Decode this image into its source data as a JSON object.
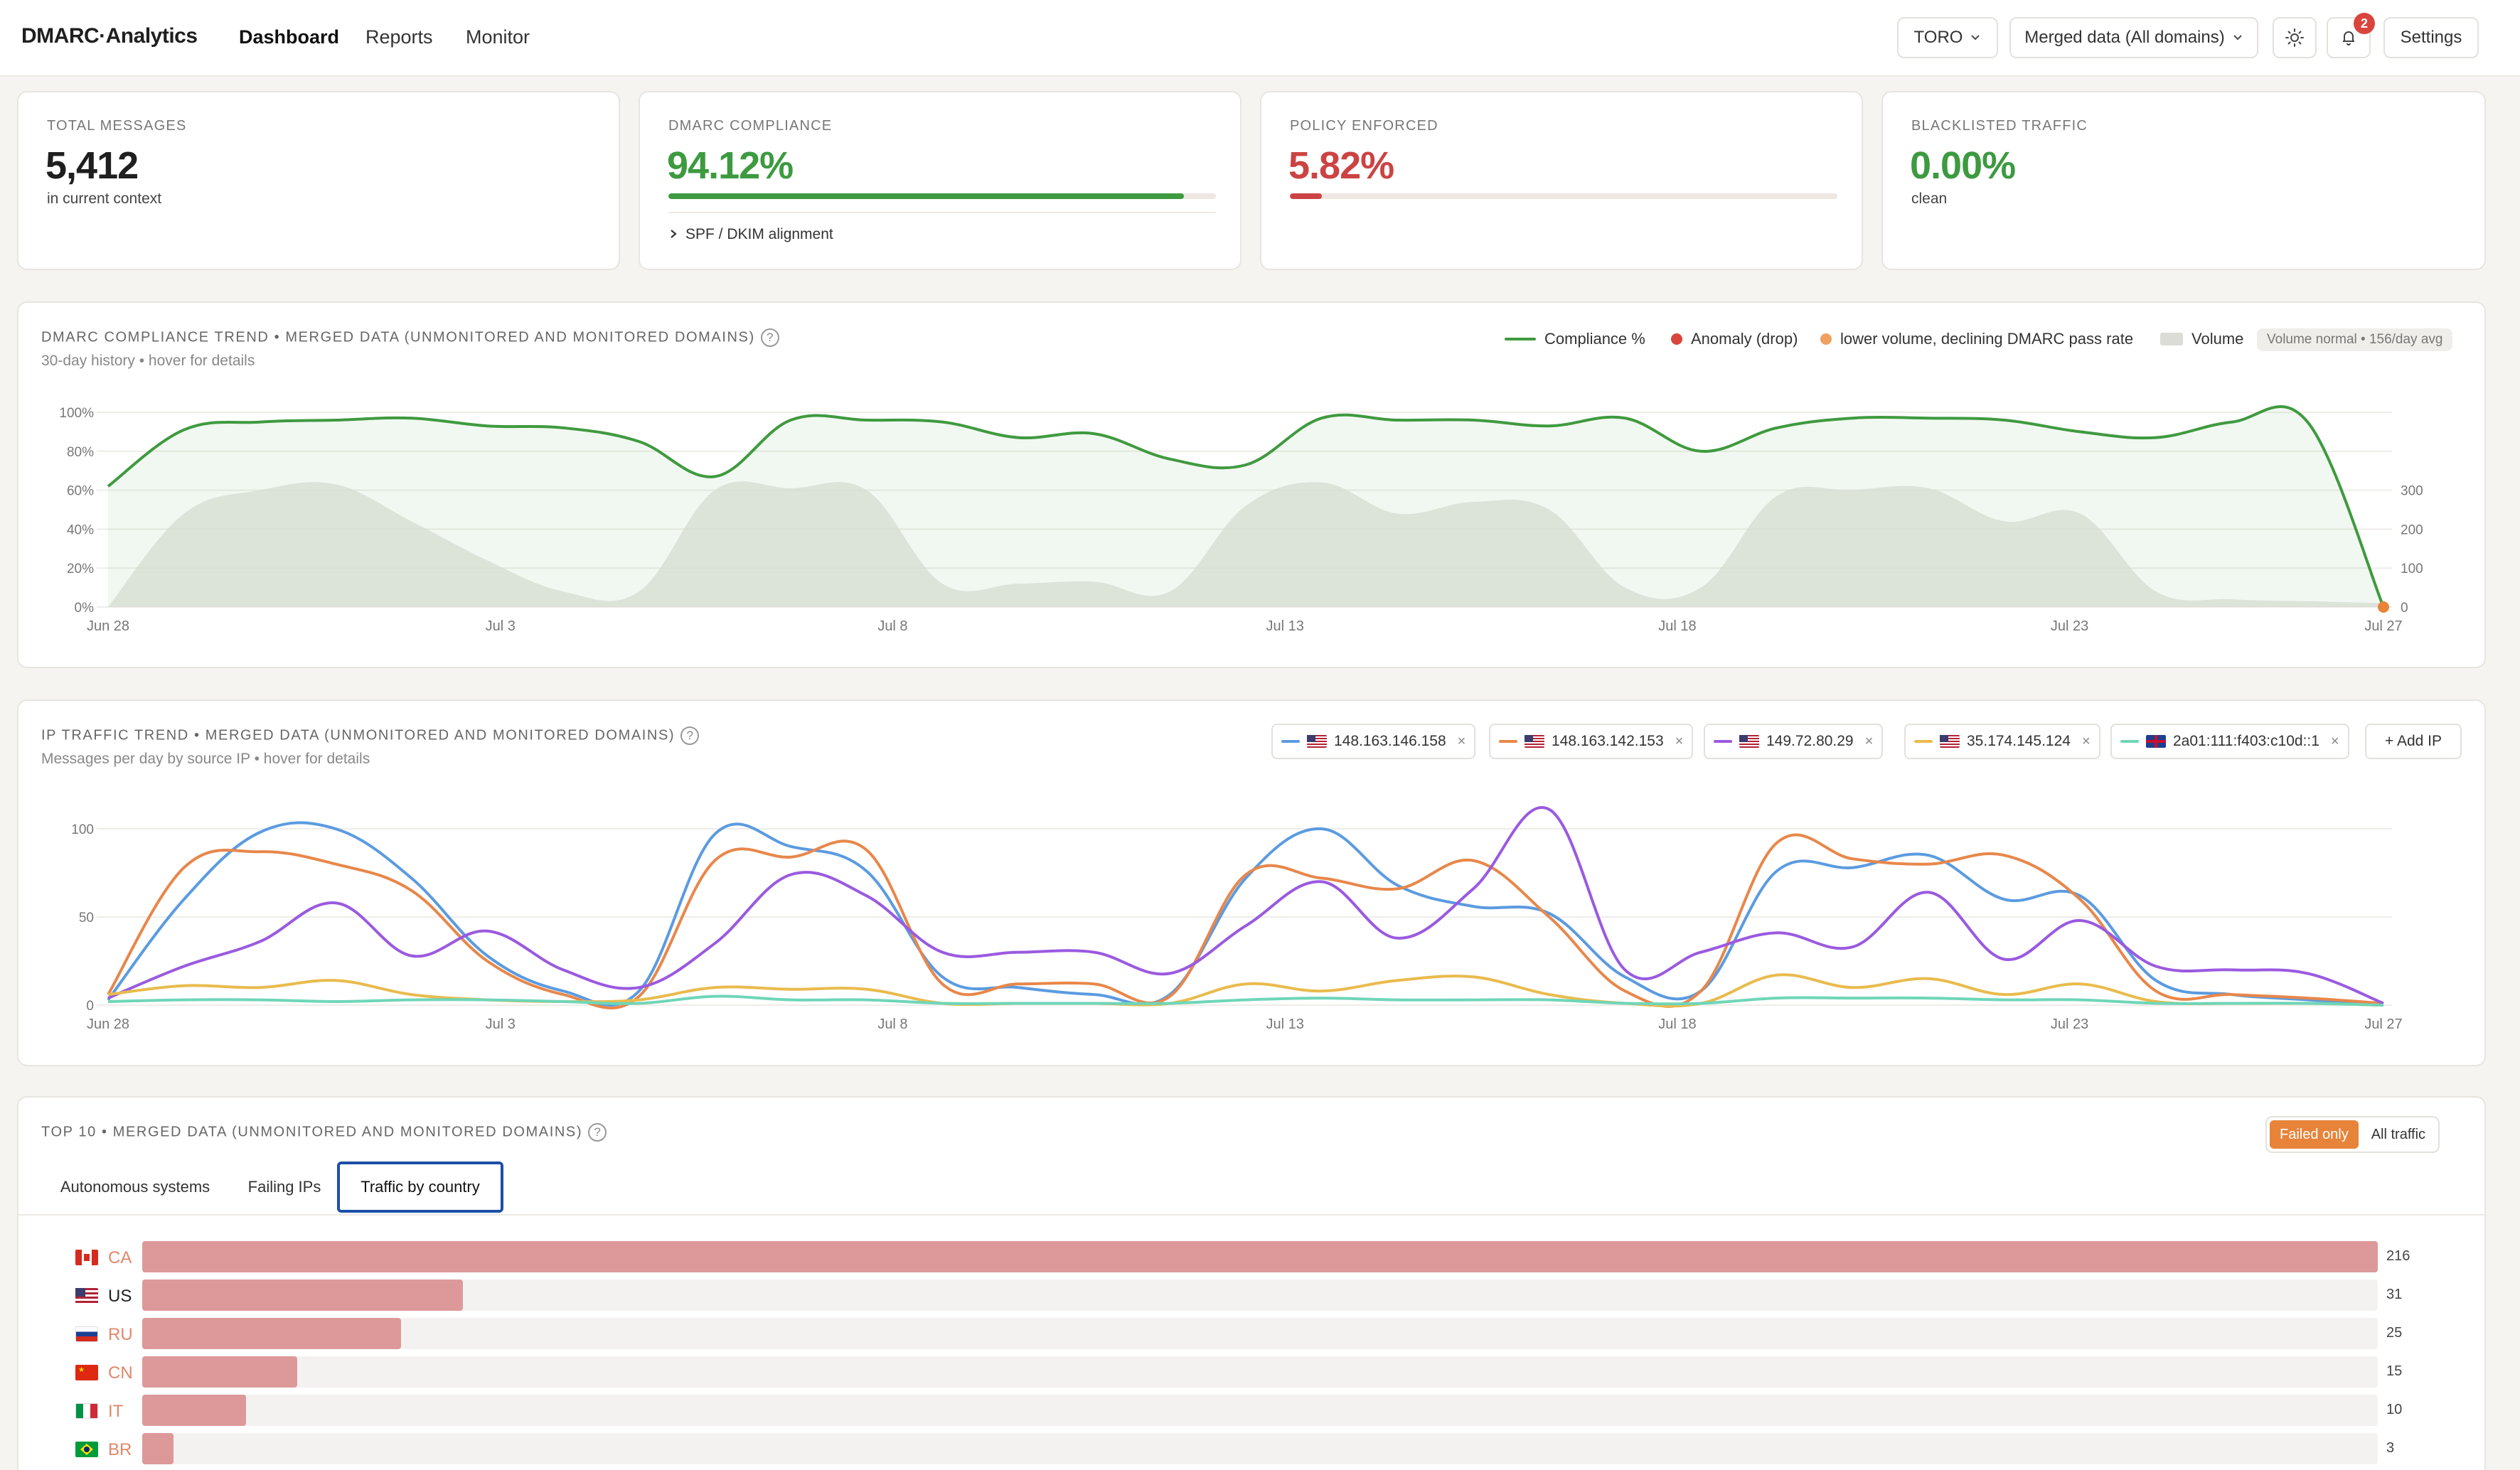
{
  "header": {
    "brand": "DMARC·Analytics",
    "nav": [
      "Dashboard",
      "Reports",
      "Monitor"
    ],
    "org_select": "TORO",
    "domain_select": "Merged data (All domains)",
    "notifications": "2",
    "settings": "Settings"
  },
  "kpis": [
    {
      "label": "TOTAL MESSAGES",
      "value": "5,412",
      "sub": "in current context",
      "color": "#1a1a1a"
    },
    {
      "label": "DMARC COMPLIANCE",
      "value": "94.12%",
      "fraction": 0.9412,
      "link": "SPF / DKIM alignment",
      "color": "#3d9a40"
    },
    {
      "label": "POLICY ENFORCED",
      "value": "5.82%",
      "fraction": 0.0582,
      "color": "#cc4343"
    },
    {
      "label": "BLACKLISTED TRAFFIC",
      "value": "0.00%",
      "sub": "clean",
      "color": "#3d9a40"
    }
  ],
  "trend": {
    "title": "DMARC COMPLIANCE TREND • MERGED DATA (UNMONITORED AND MONITORED DOMAINS)",
    "subtitle": "30-day history • hover for details",
    "legend": [
      "Compliance %",
      "Anomaly (drop)",
      "lower volume, declining DMARC pass rate",
      "Volume"
    ],
    "pill": "Volume normal • 156/day avg"
  },
  "ip_trend": {
    "title": "IP TRAFFIC TREND • MERGED DATA (UNMONITORED AND MONITORED DOMAINS)",
    "subtitle": "Messages per day by source IP • hover for details",
    "chips": [
      {
        "ip": "148.163.146.158",
        "color": "#5b9be0",
        "flag": "us"
      },
      {
        "ip": "148.163.142.153",
        "color": "#e8874a",
        "flag": "us"
      },
      {
        "ip": "149.72.80.29",
        "color": "#9a5ae0",
        "flag": "us"
      },
      {
        "ip": "35.174.145.124",
        "color": "#e9bb4d",
        "flag": "us"
      },
      {
        "ip": "2a01:111:f403:c10d::1",
        "color": "#6fd6b8",
        "flag": "gb"
      }
    ],
    "add_ip": "+ Add IP"
  },
  "top10": {
    "title": "TOP 10 • MERGED DATA (UNMONITORED AND MONITORED DOMAINS)",
    "tabs": [
      "Autonomous systems",
      "Failing IPs",
      "Traffic by country"
    ],
    "toggle": [
      "Failed only",
      "All traffic"
    ],
    "rows": [
      {
        "code": "CA",
        "value": 216
      },
      {
        "code": "US",
        "value": 31
      },
      {
        "code": "RU",
        "value": 25
      },
      {
        "code": "CN",
        "value": 15
      },
      {
        "code": "IT",
        "value": 10
      },
      {
        "code": "BR",
        "value": 3
      }
    ]
  },
  "chart_data": [
    {
      "type": "line",
      "title": "DMARC COMPLIANCE TREND • MERGED DATA (UNMONITORED AND MONITORED DOMAINS)",
      "x_ticks": [
        "Jun 28",
        "Jul 3",
        "Jul 8",
        "Jul 13",
        "Jul 18",
        "Jul 23",
        "Jul 27"
      ],
      "y_ticks": [
        "0%",
        "20%",
        "40%",
        "60%",
        "80%",
        "100%"
      ],
      "y2_ticks": [
        "0",
        "100",
        "200",
        "300"
      ],
      "ylim": [
        0,
        100
      ],
      "y2lim": [
        0,
        500
      ],
      "series": [
        {
          "name": "Compliance %",
          "color": "#3f9a3f",
          "values": [
            62,
            91,
            95,
            96,
            97,
            93,
            92,
            85,
            67,
            96,
            96,
            95,
            87,
            89,
            76,
            73,
            97,
            96,
            96,
            93,
            97,
            80,
            92,
            97,
            97,
            96,
            90,
            87,
            95,
            95,
            0
          ]
        },
        {
          "name": "Volume",
          "color": "#d9d8d3",
          "values": [
            0,
            240,
            300,
            315,
            220,
            120,
            40,
            40,
            300,
            305,
            300,
            60,
            60,
            65,
            40,
            260,
            320,
            240,
            270,
            250,
            50,
            50,
            285,
            300,
            305,
            220,
            240,
            40,
            20,
            15,
            10
          ]
        }
      ],
      "anomaly_day_index": 30
    },
    {
      "type": "line",
      "title": "IP TRAFFIC TREND • MERGED DATA (UNMONITORED AND MONITORED DOMAINS)",
      "x_ticks": [
        "Jun 28",
        "Jul 3",
        "Jul 8",
        "Jul 13",
        "Jul 18",
        "Jul 23",
        "Jul 27"
      ],
      "y_ticks": [
        "0",
        "50",
        "100"
      ],
      "ylim": [
        0,
        120
      ],
      "series": [
        {
          "name": "148.163.146.158",
          "color": "#5b9be0",
          "values": [
            3,
            60,
            98,
            100,
            72,
            28,
            8,
            8,
            97,
            90,
            76,
            16,
            10,
            6,
            6,
            72,
            100,
            68,
            56,
            52,
            16,
            8,
            76,
            78,
            85,
            60,
            62,
            14,
            6,
            3,
            0
          ]
        },
        {
          "name": "148.163.142.153",
          "color": "#e8874a",
          "values": [
            6,
            78,
            87,
            80,
            65,
            25,
            6,
            5,
            82,
            84,
            88,
            12,
            12,
            12,
            5,
            74,
            72,
            66,
            82,
            50,
            8,
            8,
            92,
            83,
            80,
            85,
            60,
            8,
            6,
            4,
            1
          ]
        },
        {
          "name": "149.72.80.29",
          "color": "#9a5ae0",
          "values": [
            4,
            22,
            36,
            58,
            28,
            42,
            20,
            10,
            35,
            74,
            62,
            30,
            30,
            30,
            18,
            45,
            70,
            38,
            66,
            111,
            20,
            30,
            41,
            33,
            64,
            26,
            48,
            22,
            20,
            18,
            1
          ]
        },
        {
          "name": "35.174.145.124",
          "color": "#e9bb4d",
          "values": [
            6,
            11,
            10,
            14,
            6,
            3,
            2,
            3,
            10,
            9,
            9,
            1,
            1,
            1,
            1,
            12,
            8,
            14,
            16,
            6,
            1,
            1,
            17,
            10,
            15,
            6,
            12,
            2,
            1,
            1,
            0
          ]
        },
        {
          "name": "2a01:111:f403:c10d::1",
          "color": "#6fd6b8",
          "values": [
            2,
            3,
            3,
            2,
            3,
            3,
            2,
            1,
            5,
            3,
            3,
            1,
            1,
            1,
            1,
            3,
            4,
            3,
            3,
            3,
            1,
            1,
            4,
            4,
            4,
            3,
            3,
            1,
            1,
            1,
            0
          ]
        }
      ]
    },
    {
      "type": "bar",
      "title": "TOP 10 • MERGED DATA (UNMONITORED AND MONITORED DOMAINS)",
      "categories": [
        "CA",
        "US",
        "RU",
        "CN",
        "IT",
        "BR"
      ],
      "values": [
        216,
        31,
        25,
        15,
        10,
        3
      ]
    }
  ],
  "colors": {
    "accent": "#e8833a",
    "good": "#3d9a40",
    "bad": "#cc4343",
    "bar": "#dd999a"
  }
}
